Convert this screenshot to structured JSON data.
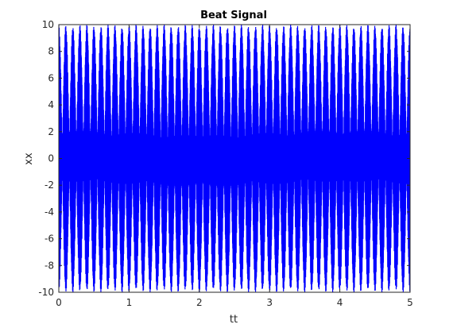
{
  "chart_data": {
    "type": "line",
    "title": "Beat Signal",
    "xlabel": "tt",
    "ylabel": "xx",
    "xlim": [
      0,
      5
    ],
    "ylim": [
      -10,
      10
    ],
    "xticks": [
      0,
      1,
      2,
      3,
      4,
      5
    ],
    "yticks": [
      -10,
      -8,
      -6,
      -4,
      -2,
      0,
      2,
      4,
      6,
      8,
      10
    ],
    "grid": false,
    "legend": "none",
    "series": [
      {
        "color": "#0000ff",
        "amplitude": 10,
        "beat_envelope_frequency_hz": 10,
        "carrier_frequency_hz": 300
      }
    ]
  }
}
